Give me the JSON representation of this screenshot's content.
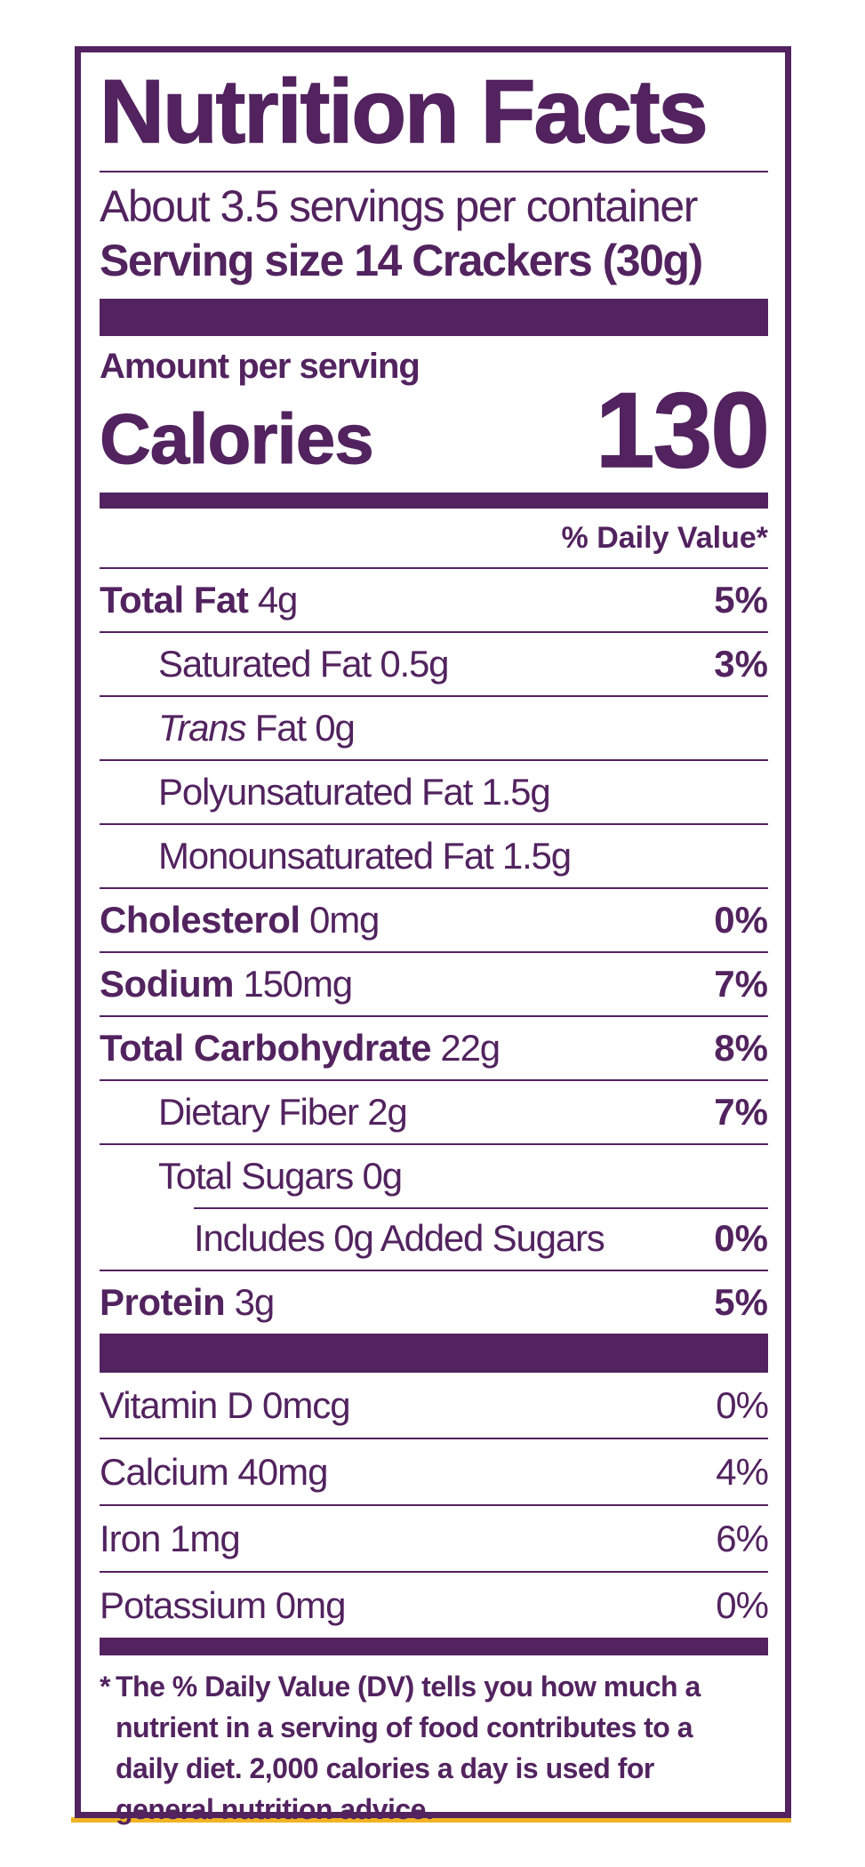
{
  "label": {
    "title": "Nutrition Facts",
    "servings": "About 3.5 servings per container",
    "serving_size": "Serving size 14 Crackers (30g)",
    "amount_per_serving": "Amount per serving",
    "calories_label": "Calories",
    "calories_value": "130",
    "daily_value_header": "% Daily Value*"
  },
  "nutrients": {
    "total_fat": {
      "name": "Total Fat",
      "amount": "4g",
      "dv": "5%"
    },
    "saturated_fat": {
      "name": "Saturated Fat 0.5g",
      "dv": "3%"
    },
    "trans_fat": {
      "italic": "Trans",
      "rest": "Fat 0g"
    },
    "polyunsaturated_fat": {
      "name": "Polyunsaturated Fat 1.5g"
    },
    "monounsaturated_fat": {
      "name": "Monounsaturated Fat 1.5g"
    },
    "cholesterol": {
      "name": "Cholesterol",
      "amount": "0mg",
      "dv": "0%"
    },
    "sodium": {
      "name": "Sodium",
      "amount": "150mg",
      "dv": "7%"
    },
    "total_carbohydrate": {
      "name": "Total Carbohydrate",
      "amount": "22g",
      "dv": "8%"
    },
    "dietary_fiber": {
      "name": "Dietary Fiber 2g",
      "dv": "7%"
    },
    "total_sugars": {
      "name": "Total Sugars 0g"
    },
    "added_sugars": {
      "name": "Includes 0g Added Sugars",
      "dv": "0%"
    },
    "protein": {
      "name": "Protein",
      "amount": "3g",
      "dv": "5%"
    }
  },
  "vitamins": {
    "vitamin_d": {
      "name": "Vitamin D 0mcg",
      "dv": "0%"
    },
    "calcium": {
      "name": "Calcium 40mg",
      "dv": "4%"
    },
    "iron": {
      "name": "Iron 1mg",
      "dv": "6%"
    },
    "potassium": {
      "name": "Potassium 0mg",
      "dv": "0%"
    }
  },
  "footnote": {
    "star": "*",
    "line1": "The % Daily Value (DV) tells you how much a",
    "line2": "nutrient in a serving of food contributes to a",
    "line3": "daily diet. 2,000 calories a day is used for",
    "line4": "general nutrition advice."
  },
  "colors": {
    "ink": "#52235f",
    "accent": "#f0b323"
  }
}
